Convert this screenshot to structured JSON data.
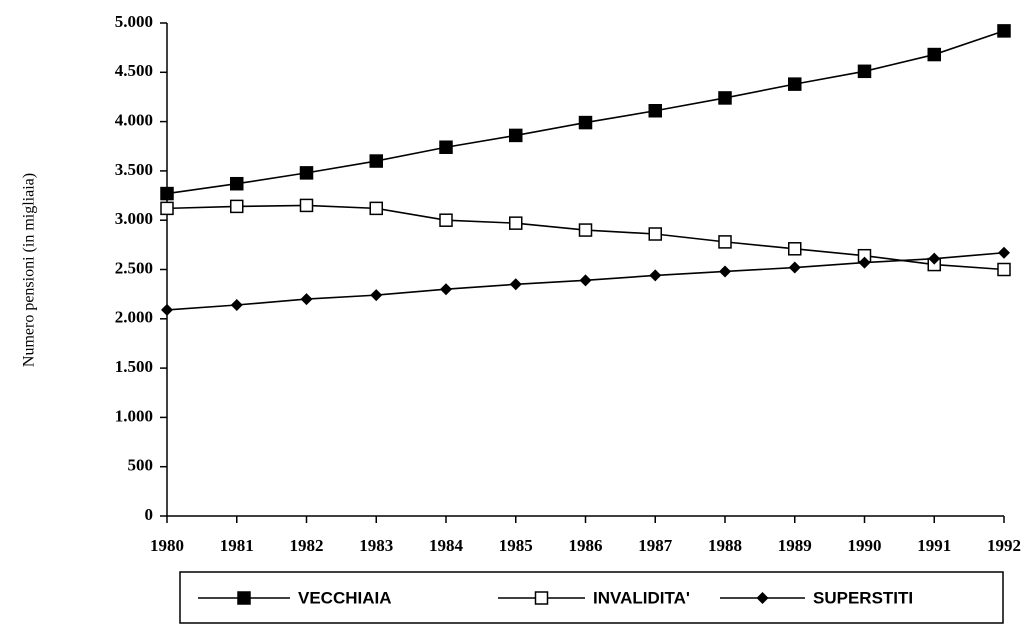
{
  "chart_data": {
    "type": "line",
    "y_label": "Numero pensioni (in migliaia)",
    "x": [
      1980,
      1981,
      1982,
      1983,
      1984,
      1985,
      1986,
      1987,
      1988,
      1989,
      1990,
      1991,
      1992
    ],
    "xlim": [
      1980,
      1992
    ],
    "xticks": [
      1980,
      1981,
      1982,
      1983,
      1984,
      1985,
      1986,
      1987,
      1988,
      1989,
      1990,
      1991,
      1992
    ],
    "ylim": [
      0,
      5000
    ],
    "yticks": [
      0,
      500,
      {
        "value": 1000,
        "label": "1.000"
      },
      {
        "value": 1500,
        "label": "1.500"
      },
      {
        "value": 2000,
        "label": "2.000"
      },
      {
        "value": 2500,
        "label": "2.500"
      },
      {
        "value": 3000,
        "label": "3.000"
      },
      {
        "value": 3500,
        "label": "3.500"
      },
      {
        "value": 4000,
        "label": "4.000"
      },
      {
        "value": 4500,
        "label": "4.500"
      },
      {
        "value": 5000,
        "label": "5.000"
      }
    ],
    "grid": false,
    "legend": "bottom",
    "series": [
      {
        "name": "VECCHIAIA",
        "color": "#000000",
        "marker": "square",
        "values": [
          3270,
          3370,
          3480,
          3600,
          3740,
          3860,
          3990,
          4110,
          4240,
          4380,
          4510,
          4680,
          4920
        ]
      },
      {
        "name": "INVALIDITA'",
        "color": "#000000",
        "marker": "square-open",
        "values": [
          3120,
          3140,
          3150,
          3120,
          3000,
          2970,
          2900,
          2860,
          2780,
          2710,
          2640,
          2550,
          2500
        ]
      },
      {
        "name": "SUPERSTITI",
        "color": "#000000",
        "marker": "diamond",
        "values": [
          2090,
          2140,
          2200,
          2240,
          2300,
          2350,
          2390,
          2440,
          2480,
          2520,
          2570,
          2610,
          2670
        ]
      }
    ]
  }
}
